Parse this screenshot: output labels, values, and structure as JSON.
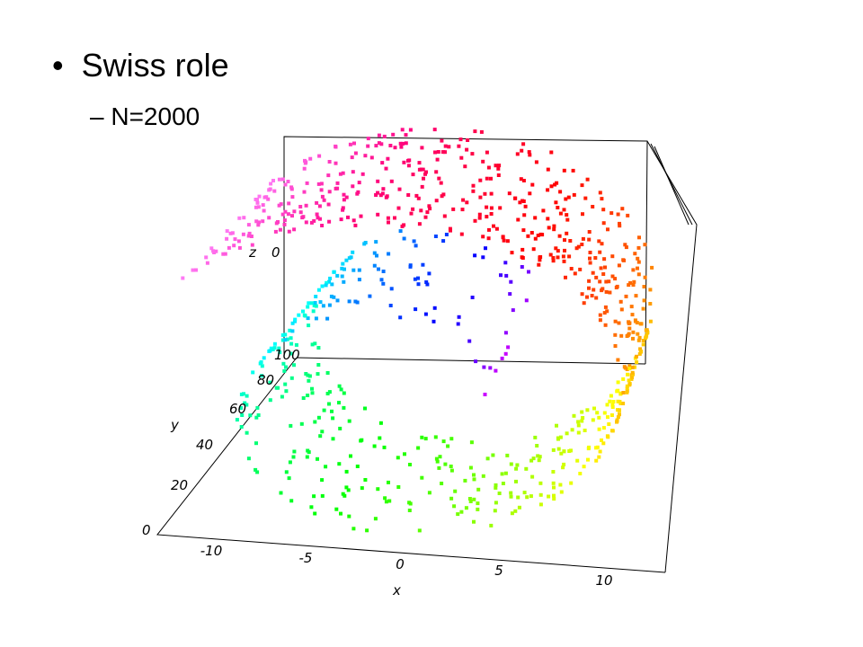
{
  "slide": {
    "bullets": [
      {
        "text": "Swiss role",
        "sub": [
          "N=2000"
        ]
      }
    ]
  },
  "figure": {
    "x_label": "x",
    "x_ticks": [
      "-10",
      "-5",
      "0",
      "5",
      "10"
    ],
    "y_label": "y",
    "y_ticks": [
      "0",
      "20",
      "40",
      "60",
      "80",
      "100"
    ],
    "z_label": "z",
    "z_ticks": [
      "0"
    ]
  }
}
